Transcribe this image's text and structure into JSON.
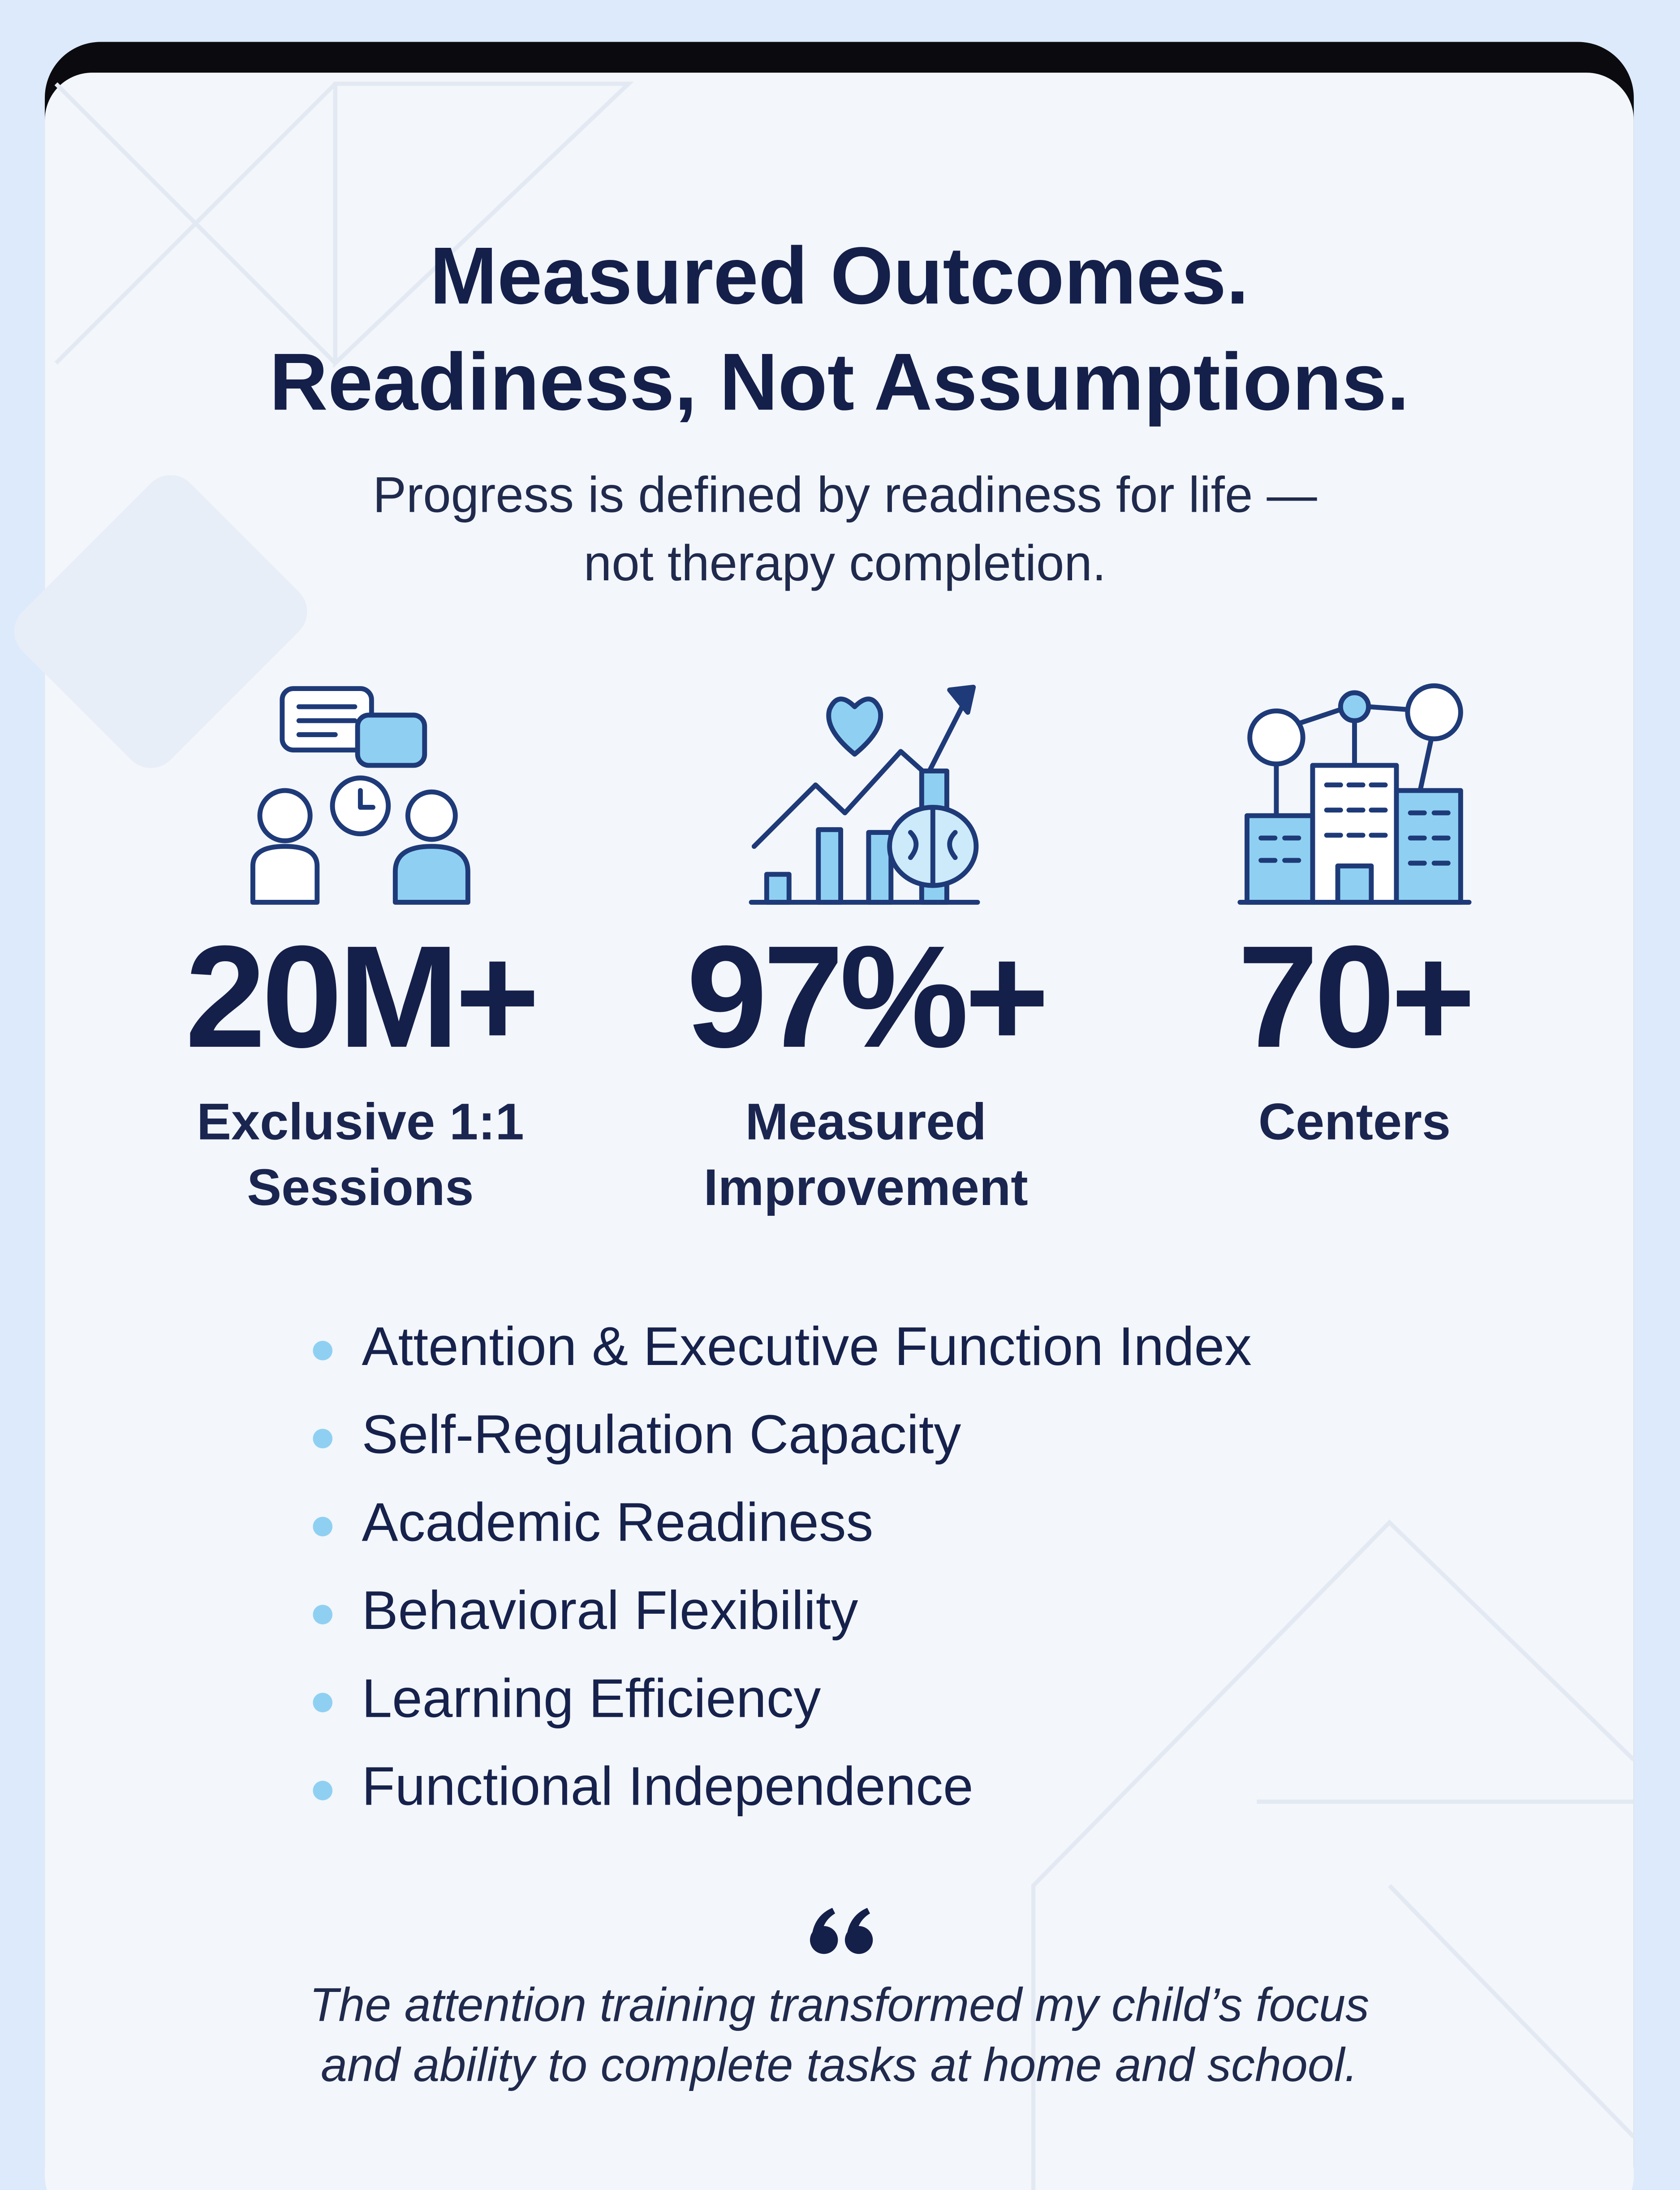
{
  "header": {
    "title": [
      "Measured Outcomes.",
      "Readiness, Not Assumptions."
    ],
    "subtitle": [
      "Progress is defined by readiness for life —",
      "not therapy completion."
    ]
  },
  "stats": [
    {
      "value": "20M+",
      "label": [
        "Exclusive 1:1",
        "Sessions"
      ]
    },
    {
      "value": "97%+",
      "label": [
        "Measured",
        "Improvement"
      ]
    },
    {
      "value": "70+",
      "label": [
        "Centers"
      ]
    }
  ],
  "list": [
    "Attention & Executive Function Index",
    "Self-Regulation Capacity",
    "Academic Readiness",
    "Behavioral Flexibility",
    "Learning Efficiency",
    "Functional Independence"
  ],
  "quote": [
    "The attention training transformed my child’s focus",
    "and ability to complete tasks at home and school."
  ]
}
